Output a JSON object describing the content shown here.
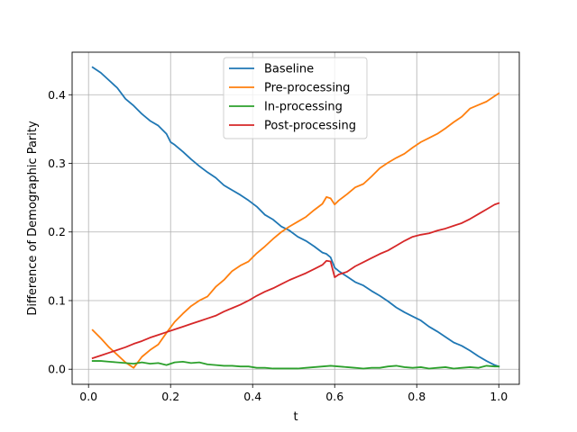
{
  "chart_data": {
    "type": "line",
    "title": "",
    "xlabel": "t",
    "ylabel": "Difference of Demographic Parity",
    "xlim": [
      -0.04,
      1.05
    ],
    "ylim": [
      -0.022,
      0.462
    ],
    "xticks": [
      0.0,
      0.2,
      0.4,
      0.6,
      0.8,
      1.0
    ],
    "xtick_labels": [
      "0.0",
      "0.2",
      "0.4",
      "0.6",
      "0.8",
      "1.0"
    ],
    "yticks": [
      0.0,
      0.1,
      0.2,
      0.3,
      0.4
    ],
    "ytick_labels": [
      "0.0",
      "0.1",
      "0.2",
      "0.3",
      "0.4"
    ],
    "grid": true,
    "legend_position": "top-center",
    "series": [
      {
        "name": "Baseline",
        "color": "#1f77b4",
        "x": [
          0.01,
          0.03,
          0.05,
          0.07,
          0.09,
          0.11,
          0.13,
          0.15,
          0.17,
          0.19,
          0.2,
          0.21,
          0.23,
          0.25,
          0.27,
          0.29,
          0.31,
          0.33,
          0.35,
          0.37,
          0.39,
          0.41,
          0.43,
          0.45,
          0.47,
          0.49,
          0.51,
          0.53,
          0.55,
          0.57,
          0.58,
          0.59,
          0.6,
          0.61,
          0.63,
          0.65,
          0.67,
          0.69,
          0.71,
          0.73,
          0.75,
          0.77,
          0.79,
          0.81,
          0.83,
          0.85,
          0.87,
          0.89,
          0.91,
          0.93,
          0.95,
          0.97,
          0.99,
          1.0
        ],
        "y": [
          0.44,
          0.432,
          0.421,
          0.41,
          0.394,
          0.384,
          0.372,
          0.362,
          0.355,
          0.343,
          0.331,
          0.327,
          0.317,
          0.306,
          0.296,
          0.287,
          0.279,
          0.268,
          0.261,
          0.254,
          0.246,
          0.237,
          0.225,
          0.218,
          0.208,
          0.202,
          0.193,
          0.187,
          0.179,
          0.17,
          0.168,
          0.163,
          0.148,
          0.143,
          0.135,
          0.127,
          0.122,
          0.114,
          0.107,
          0.099,
          0.09,
          0.083,
          0.077,
          0.071,
          0.062,
          0.055,
          0.047,
          0.039,
          0.034,
          0.027,
          0.019,
          0.012,
          0.006,
          0.004
        ]
      },
      {
        "name": "Pre-processing",
        "color": "#ff7f0e",
        "x": [
          0.01,
          0.03,
          0.05,
          0.07,
          0.09,
          0.11,
          0.13,
          0.15,
          0.17,
          0.19,
          0.21,
          0.23,
          0.25,
          0.27,
          0.29,
          0.31,
          0.33,
          0.35,
          0.37,
          0.39,
          0.41,
          0.43,
          0.45,
          0.47,
          0.49,
          0.51,
          0.53,
          0.55,
          0.57,
          0.58,
          0.59,
          0.6,
          0.61,
          0.63,
          0.65,
          0.67,
          0.69,
          0.71,
          0.73,
          0.75,
          0.77,
          0.79,
          0.81,
          0.83,
          0.85,
          0.87,
          0.89,
          0.91,
          0.93,
          0.95,
          0.97,
          0.99,
          1.0
        ],
        "y": [
          0.057,
          0.045,
          0.032,
          0.021,
          0.01,
          0.002,
          0.018,
          0.028,
          0.036,
          0.053,
          0.069,
          0.081,
          0.092,
          0.1,
          0.106,
          0.12,
          0.13,
          0.143,
          0.151,
          0.157,
          0.169,
          0.179,
          0.19,
          0.2,
          0.208,
          0.215,
          0.222,
          0.232,
          0.241,
          0.251,
          0.249,
          0.24,
          0.246,
          0.255,
          0.265,
          0.27,
          0.281,
          0.293,
          0.301,
          0.308,
          0.314,
          0.323,
          0.331,
          0.337,
          0.343,
          0.351,
          0.36,
          0.368,
          0.38,
          0.385,
          0.39,
          0.398,
          0.402
        ]
      },
      {
        "name": "In-processing",
        "color": "#2ca02c",
        "x": [
          0.01,
          0.03,
          0.05,
          0.07,
          0.09,
          0.11,
          0.13,
          0.15,
          0.17,
          0.19,
          0.21,
          0.23,
          0.25,
          0.27,
          0.29,
          0.31,
          0.33,
          0.35,
          0.37,
          0.39,
          0.41,
          0.43,
          0.45,
          0.47,
          0.49,
          0.51,
          0.53,
          0.55,
          0.57,
          0.59,
          0.61,
          0.63,
          0.65,
          0.67,
          0.69,
          0.71,
          0.73,
          0.75,
          0.77,
          0.79,
          0.81,
          0.83,
          0.85,
          0.87,
          0.89,
          0.91,
          0.93,
          0.95,
          0.97,
          0.99,
          1.0
        ],
        "y": [
          0.012,
          0.012,
          0.011,
          0.01,
          0.009,
          0.008,
          0.01,
          0.008,
          0.009,
          0.006,
          0.01,
          0.011,
          0.009,
          0.01,
          0.007,
          0.006,
          0.005,
          0.005,
          0.004,
          0.004,
          0.002,
          0.002,
          0.001,
          0.001,
          0.001,
          0.001,
          0.002,
          0.003,
          0.004,
          0.005,
          0.004,
          0.003,
          0.002,
          0.001,
          0.002,
          0.002,
          0.004,
          0.005,
          0.003,
          0.002,
          0.003,
          0.001,
          0.002,
          0.003,
          0.001,
          0.002,
          0.003,
          0.002,
          0.005,
          0.004,
          0.004
        ]
      },
      {
        "name": "Post-processing",
        "color": "#d62728",
        "x": [
          0.01,
          0.03,
          0.05,
          0.07,
          0.09,
          0.11,
          0.13,
          0.15,
          0.17,
          0.19,
          0.21,
          0.23,
          0.25,
          0.27,
          0.29,
          0.31,
          0.33,
          0.35,
          0.37,
          0.39,
          0.41,
          0.43,
          0.45,
          0.47,
          0.49,
          0.51,
          0.53,
          0.55,
          0.57,
          0.58,
          0.59,
          0.6,
          0.61,
          0.63,
          0.65,
          0.67,
          0.69,
          0.71,
          0.73,
          0.75,
          0.77,
          0.79,
          0.81,
          0.83,
          0.85,
          0.87,
          0.89,
          0.91,
          0.93,
          0.95,
          0.97,
          0.99,
          1.0
        ],
        "y": [
          0.016,
          0.02,
          0.024,
          0.028,
          0.032,
          0.037,
          0.041,
          0.046,
          0.05,
          0.054,
          0.058,
          0.062,
          0.066,
          0.07,
          0.074,
          0.078,
          0.084,
          0.089,
          0.094,
          0.1,
          0.107,
          0.113,
          0.118,
          0.124,
          0.13,
          0.135,
          0.14,
          0.146,
          0.152,
          0.158,
          0.157,
          0.134,
          0.138,
          0.142,
          0.15,
          0.156,
          0.162,
          0.168,
          0.173,
          0.18,
          0.187,
          0.193,
          0.196,
          0.198,
          0.202,
          0.205,
          0.209,
          0.213,
          0.219,
          0.226,
          0.233,
          0.24,
          0.242
        ]
      }
    ]
  }
}
